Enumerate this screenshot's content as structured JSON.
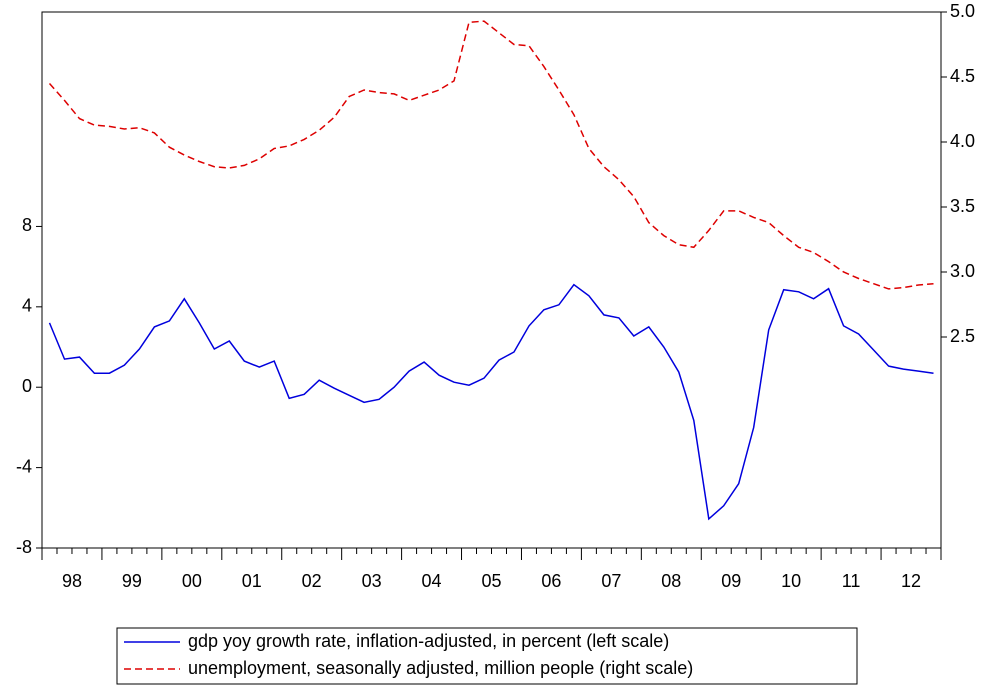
{
  "chart_data": {
    "type": "line",
    "categories": [
      null,
      "98",
      null,
      null,
      null,
      "99",
      null,
      null,
      null,
      "00",
      null,
      null,
      null,
      "01",
      null,
      null,
      null,
      "02",
      null,
      null,
      null,
      "03",
      null,
      null,
      null,
      "04",
      null,
      null,
      null,
      "05",
      null,
      null,
      null,
      "06",
      null,
      null,
      null,
      "07",
      null,
      null,
      null,
      "08",
      null,
      null,
      null,
      "09",
      null,
      null,
      null,
      "10",
      null,
      null,
      null,
      "11",
      null,
      null,
      null,
      "12",
      null,
      null
    ],
    "series": [
      {
        "name": "gdp yoy growth rate, inflation-adjusted, in percent (left scale)",
        "color": "#0000dd",
        "dash": "solid",
        "axis": "y",
        "values": [
          3.2,
          1.4,
          1.5,
          0.7,
          0.7,
          1.1,
          1.9,
          3.0,
          3.3,
          4.4,
          3.2,
          1.9,
          2.3,
          1.3,
          1.0,
          1.3,
          -0.55,
          -0.35,
          0.35,
          -0.05,
          -0.4,
          -0.75,
          -0.6,
          0,
          0.8,
          1.25,
          0.6,
          0.25,
          0.1,
          0.45,
          1.35,
          1.75,
          3.05,
          3.85,
          4.1,
          5.1,
          4.55,
          3.6,
          3.45,
          2.55,
          3.0,
          2.0,
          0.75,
          -1.65,
          -6.55,
          -5.9,
          -4.8,
          -2.0,
          2.85,
          4.85,
          4.75,
          4.4,
          4.9,
          3.05,
          2.65,
          1.85,
          1.05,
          0.9,
          0.8,
          0.7
        ]
      },
      {
        "name": "unemployment, seasonally adjusted, million people (right scale)",
        "color": "#dd0000",
        "dash": "dashed",
        "axis": "y2",
        "values": [
          4.45,
          4.32,
          4.18,
          4.13,
          4.12,
          4.1,
          4.11,
          4.07,
          3.96,
          3.9,
          3.85,
          3.81,
          3.8,
          3.82,
          3.87,
          3.95,
          3.97,
          4.02,
          4.09,
          4.19,
          4.35,
          4.4,
          4.38,
          4.37,
          4.32,
          4.36,
          4.4,
          4.47,
          4.92,
          4.93,
          4.84,
          4.75,
          4.74,
          4.58,
          4.4,
          4.21,
          3.95,
          3.81,
          3.71,
          3.58,
          3.38,
          3.28,
          3.21,
          3.19,
          3.32,
          3.47,
          3.47,
          3.42,
          3.38,
          3.28,
          3.19,
          3.15,
          3.08,
          3.0,
          2.95,
          2.91,
          2.87,
          2.88,
          2.9,
          2.91
        ]
      }
    ],
    "ylim": [
      -8,
      18.67
    ],
    "yticks": [
      -8,
      -4,
      0,
      4,
      8
    ],
    "y2lim": [
      0.877,
      5.0
    ],
    "y2ticks": [
      2.5,
      {
        "value": 3,
        "label": "3.0"
      },
      3.5,
      {
        "value": 4,
        "label": "4.0"
      },
      4.5,
      {
        "value": 5,
        "label": "5.0"
      }
    ],
    "grid": false,
    "legend": "bottom"
  }
}
